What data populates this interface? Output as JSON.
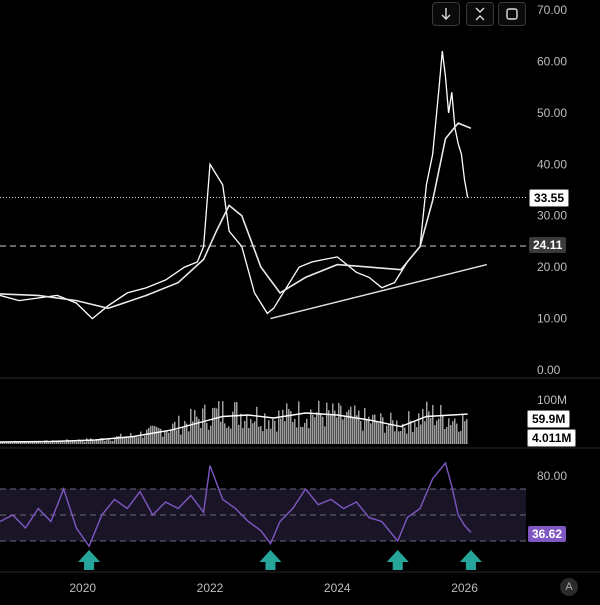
{
  "toolbar": {
    "download_icon": "arrow-down-icon",
    "collapse_icon": "collapse-icon",
    "fullscreen_icon": "fullscreen-icon"
  },
  "price_axis": {
    "ticks": [
      "70.00",
      "60.00",
      "50.00",
      "40.00",
      "30.00",
      "20.00",
      "10.00",
      "0.00"
    ],
    "tick_values": [
      70,
      60,
      50,
      40,
      30,
      20,
      10,
      0
    ]
  },
  "price_pane": {
    "current_price_label": "33.55",
    "current_price": 33.55,
    "ref_line_label": "24.11",
    "ref_line": 24.11,
    "trendline": {
      "start": {
        "x": 2022.95,
        "y": 10.0
      },
      "end": {
        "x": 2026.35,
        "y": 20.5
      }
    }
  },
  "volume_pane": {
    "tick_label": "100M",
    "ma_label": "59.9M",
    "volume_label": "4.011M"
  },
  "rsi_pane": {
    "tick_label": "80.00",
    "value_label": "36.62",
    "value": 36.62,
    "upper": 70,
    "lower": 30,
    "mid": 50
  },
  "time_axis": {
    "ticks": [
      "2020",
      "2022",
      "2024",
      "2026"
    ],
    "tick_values": [
      2020,
      2022,
      2024,
      2026
    ]
  },
  "signal_markers": [
    2020.1,
    2022.95,
    2024.95,
    2026.1
  ],
  "auto_scale_label": "A",
  "colors": {
    "background": "#000000",
    "price_line": "#ffffff",
    "rsi_line": "#7e57c2",
    "rsi_band": "#1a1526",
    "volume_bars": "#9e9e9e",
    "marker": "#26a69a"
  },
  "chart_data": {
    "type": "line",
    "x_range": [
      2018.7,
      2026.95
    ],
    "price_range": [
      0,
      70
    ],
    "price_series": {
      "x": [
        2018.7,
        2019.0,
        2019.3,
        2019.6,
        2019.9,
        2020.15,
        2020.4,
        2020.7,
        2021.0,
        2021.3,
        2021.6,
        2021.8,
        2021.9,
        2022.0,
        2022.1,
        2022.2,
        2022.3,
        2022.5,
        2022.7,
        2022.9,
        2023.0,
        2023.2,
        2023.4,
        2023.6,
        2023.8,
        2024.0,
        2024.3,
        2024.5,
        2024.7,
        2024.9,
        2025.1,
        2025.3,
        2025.4,
        2025.5,
        2025.6,
        2025.65,
        2025.7,
        2025.75,
        2025.8,
        2025.85,
        2025.9,
        2025.95,
        2026.0,
        2026.05
      ],
      "y": [
        14.5,
        13.5,
        14.0,
        14.5,
        13.0,
        10.0,
        12.5,
        15.0,
        16.0,
        17.5,
        20.0,
        21.0,
        24.0,
        40.0,
        38.0,
        36.0,
        27.0,
        24.0,
        15.0,
        11.0,
        12.0,
        16.0,
        20.0,
        21.0,
        21.5,
        22.0,
        19.0,
        18.0,
        16.0,
        17.0,
        21.0,
        24.0,
        36.0,
        42.0,
        55.0,
        62.0,
        57.0,
        50.0,
        54.0,
        47.0,
        44.0,
        42.0,
        37.0,
        33.55
      ]
    },
    "ma_series": {
      "x": [
        2018.7,
        2019.3,
        2019.9,
        2020.4,
        2021.0,
        2021.5,
        2021.9,
        2022.1,
        2022.3,
        2022.5,
        2022.8,
        2023.1,
        2023.5,
        2024.0,
        2024.5,
        2025.0,
        2025.3,
        2025.5,
        2025.7,
        2025.9,
        2026.1
      ],
      "y": [
        14.8,
        14.5,
        13.5,
        12.0,
        14.5,
        17.0,
        21.5,
        27.0,
        32.0,
        30.0,
        20.0,
        15.0,
        18.0,
        20.5,
        20.0,
        19.5,
        24.0,
        33.0,
        45.0,
        48.0,
        47.0
      ]
    },
    "volume_series": {
      "x": [
        2018.7,
        2019.5,
        2020.2,
        2020.8,
        2021.4,
        2021.9,
        2022.2,
        2022.6,
        2023.0,
        2023.5,
        2024.0,
        2024.5,
        2025.0,
        2025.4,
        2025.8,
        2026.05
      ],
      "y": [
        5,
        6,
        10,
        20,
        40,
        65,
        75,
        70,
        60,
        75,
        65,
        55,
        45,
        70,
        60,
        55
      ]
    },
    "volume_ma_series": {
      "x": [
        2018.7,
        2019.5,
        2020.2,
        2020.8,
        2021.4,
        2021.9,
        2022.2,
        2022.6,
        2023.0,
        2023.5,
        2024.0,
        2024.5,
        2025.0,
        2025.4,
        2025.8,
        2026.05
      ],
      "y": [
        4,
        5,
        8,
        15,
        28,
        45,
        55,
        58,
        52,
        62,
        58,
        48,
        35,
        55,
        58,
        59.9
      ]
    },
    "rsi_series": {
      "x": [
        2018.7,
        2018.9,
        2019.1,
        2019.3,
        2019.5,
        2019.7,
        2019.9,
        2020.1,
        2020.3,
        2020.5,
        2020.7,
        2020.9,
        2021.1,
        2021.3,
        2021.5,
        2021.7,
        2021.9,
        2022.0,
        2022.2,
        2022.4,
        2022.6,
        2022.8,
        2022.95,
        2023.1,
        2023.3,
        2023.5,
        2023.7,
        2023.9,
        2024.1,
        2024.3,
        2024.5,
        2024.7,
        2024.95,
        2025.1,
        2025.3,
        2025.5,
        2025.7,
        2025.8,
        2025.9,
        2026.0,
        2026.1
      ],
      "y": [
        45,
        50,
        40,
        55,
        45,
        70,
        40,
        26,
        50,
        62,
        55,
        68,
        50,
        60,
        55,
        65,
        52,
        88,
        62,
        55,
        45,
        38,
        28,
        45,
        55,
        70,
        58,
        62,
        55,
        60,
        48,
        45,
        30,
        48,
        55,
        78,
        90,
        72,
        50,
        42,
        36.62
      ]
    }
  }
}
